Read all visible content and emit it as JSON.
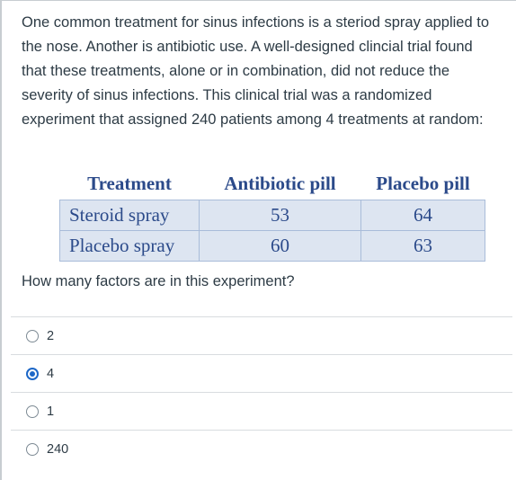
{
  "question": {
    "text": "One common treatment for sinus infections is a steriod spray applied to the nose. Another is antibiotic use. A well-designed clincial trial found that these treatments, alone or in combination, did not reduce the severity of sinus infections. This clinical trial was a randomized experiment that assigned 240 patients among 4 treatments at random:",
    "prompt": "How many factors are in this experiment?"
  },
  "table": {
    "headers": [
      "Treatment",
      "Antibiotic pill",
      "Placebo pill"
    ],
    "rows": [
      {
        "label": "Steroid spray",
        "values": [
          "53",
          "64"
        ]
      },
      {
        "label": "Placebo spray",
        "values": [
          "60",
          "63"
        ]
      }
    ]
  },
  "answers": [
    {
      "label": "2",
      "selected": false
    },
    {
      "label": "4",
      "selected": true
    },
    {
      "label": "1",
      "selected": false
    },
    {
      "label": "240",
      "selected": false
    }
  ],
  "colors": {
    "table_text": "#2b4a8a",
    "table_fill": "#dde5f1",
    "radio_selected": "#1d67c7"
  }
}
